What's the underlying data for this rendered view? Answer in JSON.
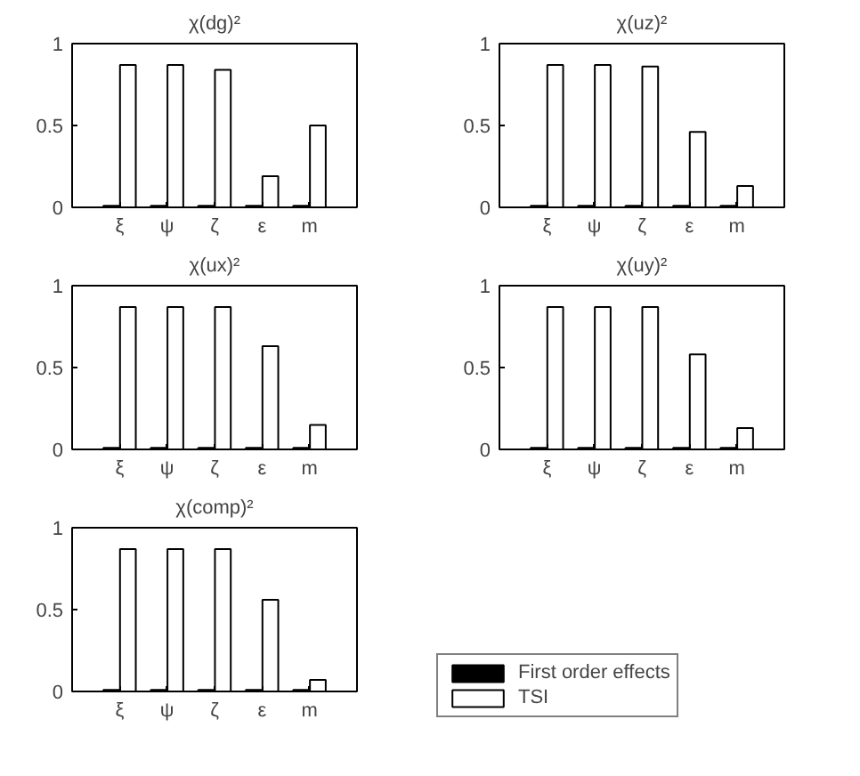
{
  "chart_data": [
    {
      "type": "bar",
      "title": "χ(dg)²",
      "categories": [
        "ξ",
        "ψ",
        "ζ",
        "ε",
        "m"
      ],
      "ylim": [
        0,
        1
      ],
      "yticks": [
        0,
        0.5,
        1
      ],
      "grid": false,
      "series": [
        {
          "color": "#000000",
          "values": [
            0.01,
            0.01,
            0.01,
            0.01,
            0.01
          ]
        },
        {
          "color": "#ffffff",
          "values": [
            0.87,
            0.87,
            0.84,
            0.19,
            0.5
          ]
        }
      ]
    },
    {
      "type": "bar",
      "title": "χ(uz)²",
      "categories": [
        "ξ",
        "ψ",
        "ζ",
        "ε",
        "m"
      ],
      "ylim": [
        0,
        1
      ],
      "yticks": [
        0,
        0.5,
        1
      ],
      "grid": false,
      "series": [
        {
          "color": "#000000",
          "values": [
            0.01,
            0.01,
            0.01,
            0.01,
            0.01
          ]
        },
        {
          "color": "#ffffff",
          "values": [
            0.87,
            0.87,
            0.86,
            0.46,
            0.13
          ]
        }
      ]
    },
    {
      "type": "bar",
      "title": "χ(ux)²",
      "categories": [
        "ξ",
        "ψ",
        "ζ",
        "ε",
        "m"
      ],
      "ylim": [
        0,
        1
      ],
      "yticks": [
        0,
        0.5,
        1
      ],
      "grid": false,
      "series": [
        {
          "color": "#000000",
          "values": [
            0.01,
            0.01,
            0.01,
            0.01,
            0.01
          ]
        },
        {
          "color": "#ffffff",
          "values": [
            0.87,
            0.87,
            0.87,
            0.63,
            0.15
          ]
        }
      ]
    },
    {
      "type": "bar",
      "title": "χ(uy)²",
      "categories": [
        "ξ",
        "ψ",
        "ζ",
        "ε",
        "m"
      ],
      "ylim": [
        0,
        1
      ],
      "yticks": [
        0,
        0.5,
        1
      ],
      "grid": false,
      "series": [
        {
          "color": "#000000",
          "values": [
            0.01,
            0.01,
            0.01,
            0.01,
            0.01
          ]
        },
        {
          "color": "#ffffff",
          "values": [
            0.87,
            0.87,
            0.87,
            0.58,
            0.13
          ]
        }
      ]
    },
    {
      "type": "bar",
      "title": "χ(comp)²",
      "categories": [
        "ξ",
        "ψ",
        "ζ",
        "ε",
        "m"
      ],
      "ylim": [
        0,
        1
      ],
      "yticks": [
        0,
        0.5,
        1
      ],
      "grid": false,
      "legend": "right",
      "series": [
        {
          "name": "First order effects",
          "color": "#000000",
          "values": [
            0.01,
            0.01,
            0.01,
            0.01,
            0.01
          ]
        },
        {
          "name": "TSI",
          "color": "#ffffff",
          "values": [
            0.87,
            0.87,
            0.87,
            0.56,
            0.07
          ]
        }
      ]
    }
  ]
}
